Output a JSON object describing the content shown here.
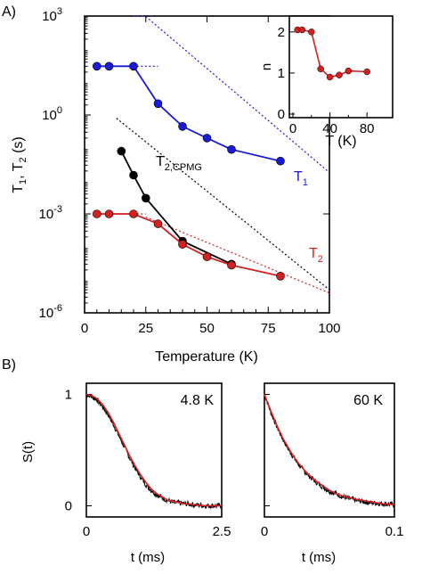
{
  "panels": {
    "a_label": "A)",
    "b_label": "B)"
  },
  "chart_data": [
    {
      "id": "main",
      "type": "line",
      "xlabel": "Temperature (K)",
      "ylabel_parts": [
        "T",
        "1",
        ", T",
        "2",
        " (s)"
      ],
      "xlim": [
        0,
        100
      ],
      "ylim_exp": [
        -6,
        3
      ],
      "log_y": true,
      "x_ticks": [
        "0",
        "25",
        "50",
        "75",
        "100"
      ],
      "y_ticks": [
        {
          "base": "10",
          "exp": "-6",
          "value_exp": -6
        },
        {
          "base": "10",
          "exp": "-3",
          "value_exp": -3
        },
        {
          "base": "10",
          "exp": "0",
          "value_exp": 0
        },
        {
          "base": "10",
          "exp": "3",
          "value_exp": 3
        }
      ],
      "series": [
        {
          "label_parts": [
            "T",
            "1"
          ],
          "color": "#1a1adb",
          "x": [
            5,
            10,
            20,
            30,
            40,
            50,
            60,
            80
          ],
          "y": [
            30,
            30,
            30,
            2.2,
            0.45,
            0.2,
            0.09,
            0.04
          ],
          "fit_lines": [
            {
              "x": [
                5,
                30
              ],
              "y": [
                30,
                30
              ]
            },
            {
              "x": [
                20,
                100
              ],
              "y": [
                2000,
                0.018
              ]
            }
          ]
        },
        {
          "label_parts": [
            "T",
            "2,CPMG"
          ],
          "color": "#000000",
          "x": [
            15,
            20,
            25,
            40,
            60
          ],
          "y": [
            0.08,
            0.015,
            0.003,
            0.00015,
            3e-05
          ],
          "fit_lines": [
            {
              "x": [
                13,
                100
              ],
              "y": [
                0.8,
                5e-06
              ]
            }
          ]
        },
        {
          "label_parts": [
            "T",
            "2"
          ],
          "color": "#d62020",
          "x": [
            5,
            10,
            20,
            30,
            40,
            50,
            60,
            80
          ],
          "y": [
            0.001,
            0.001,
            0.001,
            0.0005,
            0.00012,
            5e-05,
            2.8e-05,
            1.3e-05
          ],
          "fit_lines": [
            {
              "x": [
                5,
                25
              ],
              "y": [
                0.001,
                0.001
              ]
            },
            {
              "x": [
                25,
                100
              ],
              "y": [
                0.0008,
                4e-06
              ]
            }
          ]
        }
      ]
    },
    {
      "id": "inset",
      "type": "line",
      "xlabel": "T (K)",
      "ylabel": "n",
      "xlim": [
        0,
        100
      ],
      "ylim": [
        0,
        2.3
      ],
      "x_ticks": [
        "0",
        "40",
        "80"
      ],
      "y_ticks": [
        "0",
        "1",
        "2"
      ],
      "series": [
        {
          "color": "#d62020",
          "x": [
            5,
            10,
            20,
            30,
            40,
            50,
            60,
            80
          ],
          "y": [
            2.05,
            2.05,
            2.0,
            1.1,
            0.9,
            0.95,
            1.05,
            1.03
          ]
        }
      ]
    },
    {
      "id": "b_left",
      "type": "line",
      "annotation": "4.8 K",
      "xlabel": "t (ms)",
      "ylabel": "S(t)",
      "xlim": [
        0,
        2.5
      ],
      "ylim": [
        -0.1,
        1.1
      ],
      "x_ticks": [
        {
          "label": "0",
          "value": 0
        },
        {
          "label": "2.5",
          "value": 2.5
        }
      ],
      "y_ticks": [
        {
          "label": "0",
          "value": 0
        },
        {
          "label": "1",
          "value": 1
        }
      ],
      "series": [
        {
          "name": "data",
          "color": "#000000",
          "x": [
            0,
            0.1,
            0.2,
            0.3,
            0.4,
            0.5,
            0.6,
            0.7,
            0.8,
            0.9,
            1.0,
            1.1,
            1.2,
            1.3,
            1.4,
            1.5,
            1.6,
            1.8,
            2.0,
            2.2,
            2.5
          ],
          "y": [
            1.0,
            0.98,
            0.95,
            0.89,
            0.82,
            0.73,
            0.63,
            0.53,
            0.43,
            0.34,
            0.26,
            0.19,
            0.14,
            0.1,
            0.07,
            0.05,
            0.03,
            0.02,
            0.01,
            0.0,
            0.0
          ]
        },
        {
          "name": "fit",
          "color": "#d62020",
          "x": [
            0,
            0.1,
            0.2,
            0.3,
            0.4,
            0.5,
            0.6,
            0.7,
            0.8,
            0.9,
            1.0,
            1.1,
            1.2,
            1.3,
            1.4,
            1.5,
            1.6,
            1.8,
            2.0,
            2.2,
            2.5
          ],
          "y": [
            1.0,
            0.99,
            0.96,
            0.91,
            0.84,
            0.75,
            0.65,
            0.55,
            0.45,
            0.36,
            0.28,
            0.21,
            0.15,
            0.11,
            0.08,
            0.05,
            0.04,
            0.02,
            0.01,
            0.0,
            0.0
          ]
        }
      ]
    },
    {
      "id": "b_right",
      "type": "line",
      "annotation": "60 K",
      "xlabel": "t (ms)",
      "xlim": [
        0,
        0.1
      ],
      "ylim": [
        -0.1,
        1.1
      ],
      "x_ticks": [
        {
          "label": "0",
          "value": 0
        },
        {
          "label": "0.1",
          "value": 0.1
        }
      ],
      "series": [
        {
          "name": "data",
          "color": "#000000",
          "x": [
            0,
            0.005,
            0.01,
            0.015,
            0.02,
            0.025,
            0.03,
            0.035,
            0.04,
            0.045,
            0.05,
            0.055,
            0.06,
            0.07,
            0.08,
            0.09,
            0.1
          ],
          "y": [
            1.0,
            0.84,
            0.7,
            0.58,
            0.48,
            0.39,
            0.32,
            0.26,
            0.21,
            0.17,
            0.13,
            0.11,
            0.08,
            0.05,
            0.03,
            0.02,
            0.01
          ]
        },
        {
          "name": "fit",
          "color": "#d62020",
          "x": [
            0,
            0.005,
            0.01,
            0.015,
            0.02,
            0.025,
            0.03,
            0.035,
            0.04,
            0.045,
            0.05,
            0.055,
            0.06,
            0.07,
            0.08,
            0.09,
            0.1
          ],
          "y": [
            1.0,
            0.85,
            0.71,
            0.59,
            0.49,
            0.4,
            0.33,
            0.27,
            0.22,
            0.18,
            0.14,
            0.11,
            0.09,
            0.06,
            0.04,
            0.02,
            0.01
          ]
        }
      ]
    }
  ]
}
